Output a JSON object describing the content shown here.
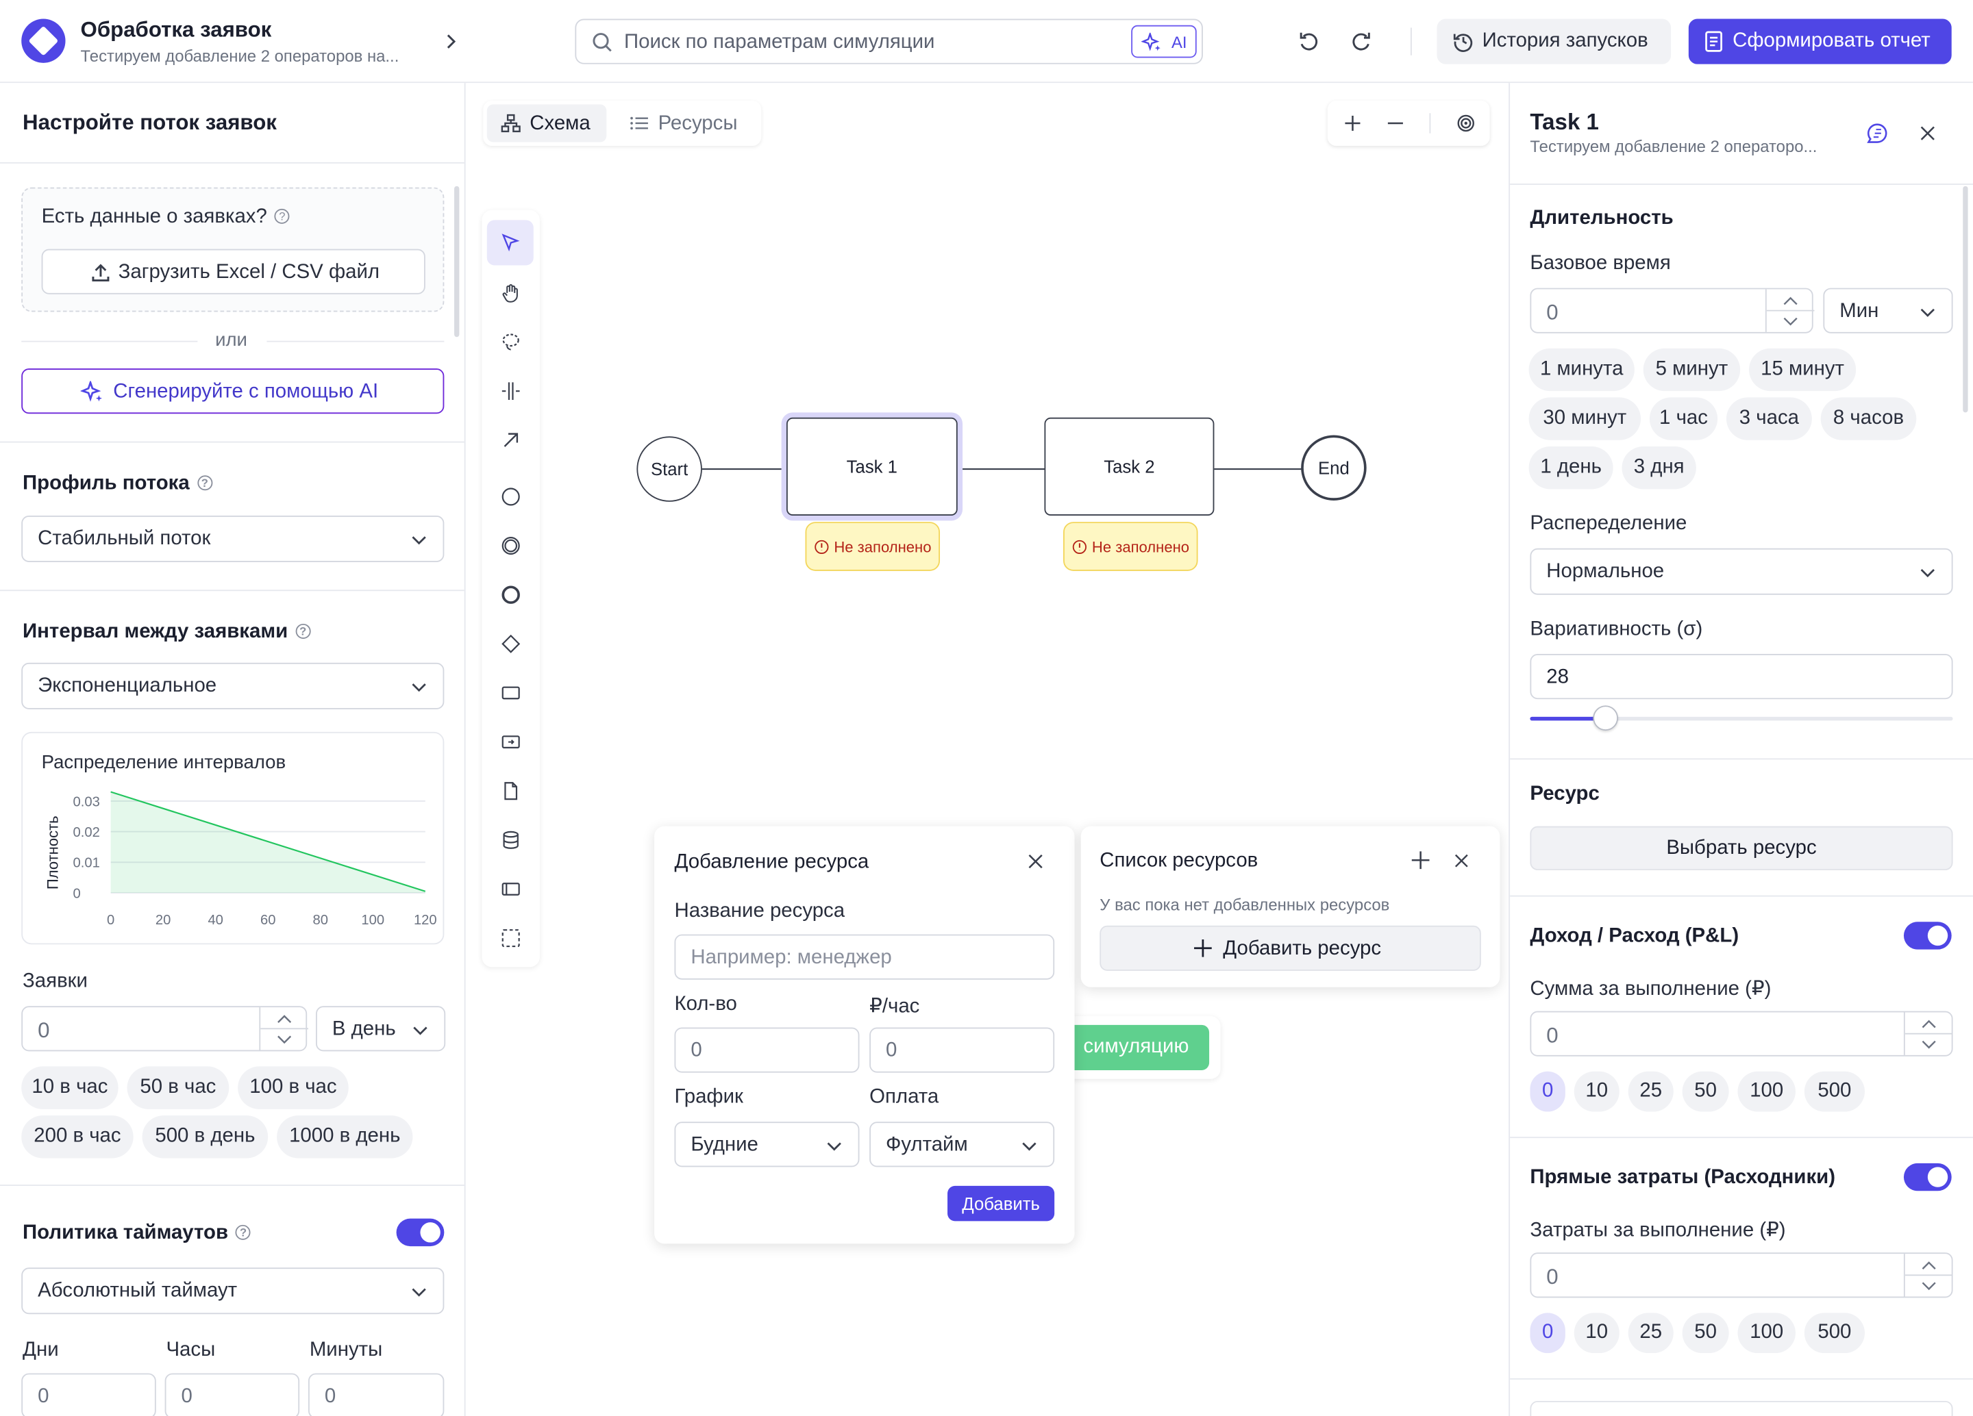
{
  "header": {
    "title": "Обработка заявок",
    "subtitle": "Тестируем добавление 2 операторов на...",
    "search_placeholder": "Поиск по параметрам симуляции",
    "ai_label": "AI",
    "history_label": "История запусков",
    "report_label": "Сформировать отчет"
  },
  "left": {
    "title": "Настройте поток заявок",
    "data_question": "Есть данные о заявках?",
    "upload_label": "Загрузить Excel / CSV файл",
    "or_label": "или",
    "ai_generate_label": "Сгенерируйте с помощью AI",
    "flow_profile_label": "Профиль потока",
    "flow_profile_value": "Стабильный поток",
    "interval_label": "Интервал между заявками",
    "interval_value": "Экспоненциальное",
    "requests_label": "Заявки",
    "requests_value": "0",
    "requests_period": "В день",
    "request_presets": [
      "10 в час",
      "50 в час",
      "100 в час",
      "200 в час",
      "500 в день",
      "1000 в день"
    ],
    "timeout_label": "Политика таймаутов",
    "timeout_enabled": true,
    "timeout_value": "Абсолютный таймаут",
    "days_label": "Дни",
    "hours_label": "Часы",
    "minutes_label": "Минуты",
    "days_value": "0",
    "hours_value": "0",
    "minutes_value": "0"
  },
  "chart_data": {
    "type": "area",
    "title": "Распределение интервалов",
    "ylabel": "Плотность",
    "xlabel": "",
    "x": [
      0,
      120
    ],
    "y": [
      0.033,
      0.0005
    ],
    "x_ticks": [
      "0",
      "20",
      "40",
      "60",
      "80",
      "100",
      "120"
    ],
    "y_ticks": [
      "0",
      "0.01",
      "0.02",
      "0.03"
    ],
    "xlim": [
      0,
      120
    ],
    "ylim": [
      0,
      0.03
    ],
    "grid": true,
    "color": "#22c55e"
  },
  "canvas": {
    "tab_schema": "Схема",
    "tab_resources": "Ресурсы",
    "nodes": {
      "start": "Start",
      "task1": "Task 1",
      "task2": "Task 2",
      "end": "End"
    },
    "warning_label": "Не заполнено",
    "run_button_fragment": "симуляцию"
  },
  "add_resource": {
    "title": "Добавление ресурса",
    "name_label": "Название ресурса",
    "name_placeholder": "Например: менеджер",
    "qty_label": "Кол-во",
    "rate_label": "₽/час",
    "qty_value": "0",
    "rate_value": "0",
    "schedule_label": "График",
    "payment_label": "Оплата",
    "schedule_value": "Будние",
    "payment_value": "Фултайм",
    "submit_label": "Добавить"
  },
  "resource_list": {
    "title": "Список ресурсов",
    "empty_text": "У вас пока нет добавленных ресурсов",
    "add_label": "Добавить ресурс"
  },
  "right": {
    "title": "Task 1",
    "subtitle": "Тестируем добавление 2 операторо...",
    "duration_title": "Длительность",
    "base_time_label": "Базовое время",
    "base_time_value": "0",
    "base_time_unit": "Мин",
    "time_presets": [
      "1 минута",
      "5 минут",
      "15 минут",
      "30 минут",
      "1 час",
      "3 часа",
      "8 часов",
      "1 день",
      "3 дня"
    ],
    "distribution_label": "Распеределение",
    "distribution_value": "Нормальное",
    "variability_label": "Вариативность (σ)",
    "variability_value": "28",
    "variability_fraction": 0.18,
    "resource_title": "Ресурс",
    "choose_resource_label": "Выбрать ресурс",
    "pnl_title": "Доход / Расход (P&L)",
    "pnl_enabled": true,
    "pnl_sum_label": "Сумма за выполнение (₽)",
    "pnl_sum_value": "0",
    "amount_presets": [
      "0",
      "10",
      "25",
      "50",
      "100",
      "500"
    ],
    "direct_title": "Прямые затраты (Расходники)",
    "direct_enabled": true,
    "direct_sum_label": "Затраты за выполнение (₽)",
    "direct_sum_value": "0"
  }
}
